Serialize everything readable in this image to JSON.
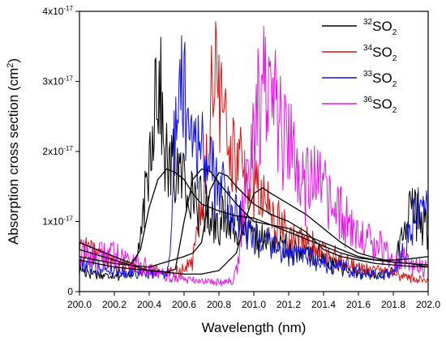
{
  "chart_data": {
    "type": "line",
    "title": "",
    "xlabel": "Wavelength (nm)",
    "ylabel": "Absorption cross section (cm²)",
    "ylabel_parts": {
      "text": "Absorption cross section (cm",
      "sup": "2",
      "end": ")"
    },
    "xlim": [
      200.0,
      202.0
    ],
    "ylim": [
      0,
      4e-17
    ],
    "x_ticks": [
      200.0,
      200.2,
      200.4,
      200.6,
      200.8,
      201.0,
      201.2,
      201.4,
      201.6,
      201.8,
      202.0
    ],
    "x_tick_labels": [
      "200.0",
      "200.2",
      "200.4",
      "200.6",
      "200.8",
      "201.0",
      "201.2",
      "201.4",
      "201.6",
      "201.8",
      "202.0"
    ],
    "y_ticks": [
      {
        "value": 0,
        "base": "0",
        "exp": ""
      },
      {
        "value": 1e-17,
        "base": "1x10",
        "exp": "-17"
      },
      {
        "value": 2e-17,
        "base": "2x10",
        "exp": "-17"
      },
      {
        "value": 3e-17,
        "base": "3x10",
        "exp": "-17"
      },
      {
        "value": 4e-17,
        "base": "4x10",
        "exp": "-17"
      }
    ],
    "legend_position": "top-right",
    "series": [
      {
        "name": "32SO2",
        "mass": "32",
        "color": "#000000",
        "points": [
          [
            200.0,
            3.2e-18
          ],
          [
            200.05,
            2.8e-18
          ],
          [
            200.1,
            2.6e-18
          ],
          [
            200.15,
            2.2e-18
          ],
          [
            200.2,
            2.6e-18
          ],
          [
            200.25,
            2.1e-18
          ],
          [
            200.3,
            3e-18
          ],
          [
            200.35,
            7e-18
          ],
          [
            200.4,
            1.8e-17
          ],
          [
            200.42,
            2.6e-17
          ],
          [
            200.45,
            3.2e-17
          ],
          [
            200.48,
            2.2e-17
          ],
          [
            200.5,
            1.8e-17
          ],
          [
            200.55,
            1.75e-17
          ],
          [
            200.6,
            1.6e-17
          ],
          [
            200.65,
            1.4e-17
          ],
          [
            200.7,
            1.2e-17
          ],
          [
            200.75,
            1.1e-17
          ],
          [
            200.8,
            1e-17
          ],
          [
            200.85,
            1e-17
          ],
          [
            200.9,
            9.5e-18
          ],
          [
            201.0,
            7.5e-18
          ],
          [
            201.1,
            7e-18
          ],
          [
            201.2,
            6e-18
          ],
          [
            201.3,
            5.5e-18
          ],
          [
            201.4,
            4.5e-18
          ],
          [
            201.5,
            3.5e-18
          ],
          [
            201.6,
            2.5e-18
          ],
          [
            201.7,
            2.2e-18
          ],
          [
            201.8,
            3e-18
          ],
          [
            201.85,
            8e-18
          ],
          [
            201.9,
            1.2e-17
          ],
          [
            201.95,
            1.1e-17
          ],
          [
            202.0,
            9e-18
          ]
        ]
      },
      {
        "name": "34SO2",
        "mass": "34",
        "color": "#dd1111",
        "points": [
          [
            200.0,
            7e-18
          ],
          [
            200.1,
            5.5e-18
          ],
          [
            200.2,
            4.5e-18
          ],
          [
            200.3,
            3.5e-18
          ],
          [
            200.4,
            3e-18
          ],
          [
            200.5,
            2.8e-18
          ],
          [
            200.6,
            3.2e-18
          ],
          [
            200.65,
            4.5e-18
          ],
          [
            200.7,
            1.2e-17
          ],
          [
            200.75,
            2.4e-17
          ],
          [
            200.78,
            3.25e-17
          ],
          [
            200.82,
            2.6e-17
          ],
          [
            200.85,
            2.2e-17
          ],
          [
            200.9,
            1.9e-17
          ],
          [
            201.0,
            1.5e-17
          ],
          [
            201.1,
            1.1e-17
          ],
          [
            201.2,
            8e-18
          ],
          [
            201.3,
            7e-18
          ],
          [
            201.4,
            5.5e-18
          ],
          [
            201.5,
            4.5e-18
          ],
          [
            201.6,
            3.5e-18
          ],
          [
            201.7,
            3e-18
          ],
          [
            201.8,
            2.6e-18
          ],
          [
            201.9,
            2e-18
          ],
          [
            202.0,
            1.5e-18
          ]
        ]
      },
      {
        "name": "33SO2",
        "mass": "33",
        "color": "#1111ee",
        "points": [
          [
            200.0,
            4.2e-18
          ],
          [
            200.1,
            3.6e-18
          ],
          [
            200.2,
            3e-18
          ],
          [
            200.3,
            2.7e-18
          ],
          [
            200.4,
            2.6e-18
          ],
          [
            200.5,
            2.8e-18
          ],
          [
            200.52,
            5e-18
          ],
          [
            200.55,
            2.4e-17
          ],
          [
            200.58,
            3.2e-17
          ],
          [
            200.6,
            2.8e-17
          ],
          [
            200.65,
            2.4e-17
          ],
          [
            200.7,
            2e-17
          ],
          [
            200.8,
            1.5e-17
          ],
          [
            200.9,
            1.1e-17
          ],
          [
            201.0,
            8e-18
          ],
          [
            201.1,
            6.5e-18
          ],
          [
            201.2,
            5.5e-18
          ],
          [
            201.3,
            5e-18
          ],
          [
            201.4,
            4.2e-18
          ],
          [
            201.5,
            3.5e-18
          ],
          [
            201.6,
            2.8e-18
          ],
          [
            201.7,
            2.4e-18
          ],
          [
            201.8,
            2.6e-18
          ],
          [
            201.85,
            5e-18
          ],
          [
            201.9,
            9e-18
          ],
          [
            201.95,
            1.3e-17
          ],
          [
            202.0,
            1.1e-17
          ]
        ]
      },
      {
        "name": "36SO2",
        "mass": "36",
        "color": "#ee11ee",
        "points": [
          [
            200.0,
            5.5e-18
          ],
          [
            200.1,
            5e-18
          ],
          [
            200.2,
            5.5e-18
          ],
          [
            200.3,
            4.5e-18
          ],
          [
            200.4,
            3e-18
          ],
          [
            200.5,
            2.2e-18
          ],
          [
            200.6,
            1.8e-18
          ],
          [
            200.7,
            1.5e-18
          ],
          [
            200.8,
            1.4e-18
          ],
          [
            200.88,
            1.6e-18
          ],
          [
            200.92,
            5e-18
          ],
          [
            200.95,
            1.7e-17
          ],
          [
            201.0,
            2.4e-17
          ],
          [
            201.05,
            3.1e-17
          ],
          [
            201.1,
            2.7e-17
          ],
          [
            201.15,
            2.3e-17
          ],
          [
            201.2,
            2.1e-17
          ],
          [
            201.3,
            1.7e-17
          ],
          [
            201.4,
            1.4e-17
          ],
          [
            201.5,
            1.05e-17
          ],
          [
            201.6,
            8e-18
          ],
          [
            201.7,
            6.5e-18
          ],
          [
            201.8,
            5e-18
          ],
          [
            201.9,
            4e-18
          ],
          [
            202.0,
            3.5e-18
          ]
        ]
      }
    ],
    "smoothed_curves": [
      {
        "name": "",
        "color": "#000000",
        "points": [
          [
            200.0,
            7e-18
          ],
          [
            200.1,
            6e-18
          ],
          [
            200.2,
            5e-18
          ],
          [
            200.3,
            4e-18
          ],
          [
            200.35,
            6e-18
          ],
          [
            200.4,
            1.2e-17
          ],
          [
            200.45,
            1.6e-17
          ],
          [
            200.5,
            1.75e-17
          ],
          [
            200.55,
            1.7e-17
          ],
          [
            200.6,
            1.6e-17
          ],
          [
            200.65,
            1.4e-17
          ],
          [
            200.7,
            1.25e-17
          ],
          [
            200.8,
            1.15e-17
          ],
          [
            200.9,
            1.08e-17
          ],
          [
            201.0,
            1.05e-17
          ],
          [
            201.1,
            9.5e-18
          ],
          [
            201.2,
            8.5e-18
          ],
          [
            201.3,
            7.5e-18
          ],
          [
            201.4,
            6.5e-18
          ],
          [
            201.5,
            5.5e-18
          ],
          [
            201.6,
            4.8e-18
          ],
          [
            201.7,
            4.5e-18
          ],
          [
            201.8,
            4.5e-18
          ],
          [
            201.9,
            4.7e-18
          ],
          [
            202.0,
            5e-18
          ]
        ]
      },
      {
        "name": "",
        "color": "#000000",
        "points": [
          [
            200.0,
            6e-18
          ],
          [
            200.2,
            4.5e-18
          ],
          [
            200.4,
            3e-18
          ],
          [
            200.5,
            2.8e-18
          ],
          [
            200.55,
            3.2e-18
          ],
          [
            200.6,
            1e-17
          ],
          [
            200.65,
            1.6e-17
          ],
          [
            200.7,
            1.75e-17
          ],
          [
            200.75,
            1.72e-17
          ],
          [
            200.8,
            1.55e-17
          ],
          [
            200.9,
            1.25e-17
          ],
          [
            201.0,
            1e-17
          ],
          [
            201.1,
            9.5e-18
          ],
          [
            201.2,
            9e-18
          ],
          [
            201.3,
            8e-18
          ],
          [
            201.4,
            7e-18
          ],
          [
            201.5,
            6e-18
          ],
          [
            201.6,
            5e-18
          ],
          [
            201.7,
            4.5e-18
          ],
          [
            201.8,
            4.2e-18
          ],
          [
            201.9,
            4e-18
          ],
          [
            202.0,
            3.5e-18
          ]
        ]
      },
      {
        "name": "",
        "color": "#000000",
        "points": [
          [
            200.0,
            5e-18
          ],
          [
            200.2,
            4e-18
          ],
          [
            200.4,
            3.5e-18
          ],
          [
            200.6,
            5e-18
          ],
          [
            200.65,
            5.5e-18
          ],
          [
            200.7,
            7e-18
          ],
          [
            200.75,
            1.45e-17
          ],
          [
            200.8,
            1.7e-17
          ],
          [
            200.85,
            1.65e-17
          ],
          [
            200.9,
            1.5e-17
          ],
          [
            201.0,
            1.25e-17
          ],
          [
            201.1,
            1.1e-17
          ],
          [
            201.2,
            1e-17
          ],
          [
            201.3,
            8.5e-18
          ],
          [
            201.4,
            6e-18
          ],
          [
            201.5,
            5e-18
          ],
          [
            201.6,
            4.5e-18
          ],
          [
            201.7,
            4e-18
          ],
          [
            201.8,
            3.8e-18
          ],
          [
            201.9,
            3.6e-18
          ],
          [
            202.0,
            3.5e-18
          ]
        ]
      },
      {
        "name": "",
        "color": "#000000",
        "points": [
          [
            200.0,
            4.5e-18
          ],
          [
            200.2,
            3.5e-18
          ],
          [
            200.4,
            3e-18
          ],
          [
            200.6,
            2.5e-18
          ],
          [
            200.7,
            2.5e-18
          ],
          [
            200.8,
            3e-18
          ],
          [
            200.9,
            5.5e-18
          ],
          [
            200.95,
            1e-17
          ],
          [
            201.0,
            1.4e-17
          ],
          [
            201.05,
            1.48e-17
          ],
          [
            201.1,
            1.4e-17
          ],
          [
            201.2,
            1.25e-17
          ],
          [
            201.3,
            1.1e-17
          ],
          [
            201.4,
            9e-18
          ],
          [
            201.5,
            7e-18
          ],
          [
            201.6,
            5.5e-18
          ],
          [
            201.7,
            4.8e-18
          ],
          [
            201.8,
            4.2e-18
          ],
          [
            201.9,
            4e-18
          ],
          [
            202.0,
            3.8e-18
          ]
        ]
      }
    ],
    "legend": [
      {
        "mass": "32",
        "formula": "SO",
        "sub": "2",
        "color": "#000000"
      },
      {
        "mass": "34",
        "formula": "SO",
        "sub": "2",
        "color": "#dd1111"
      },
      {
        "mass": "33",
        "formula": "SO",
        "sub": "2",
        "color": "#1111ee"
      },
      {
        "mass": "36",
        "formula": "SO",
        "sub": "2",
        "color": "#ee11ee"
      }
    ]
  }
}
